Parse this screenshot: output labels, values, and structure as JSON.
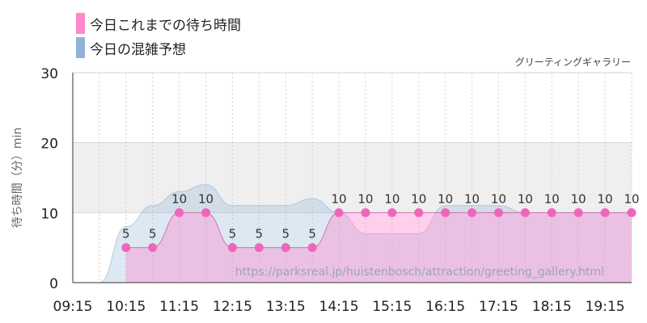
{
  "chart_data": {
    "type": "area",
    "title": "",
    "xlabel": "",
    "ylabel": "待ち時間（分）min",
    "ylim": [
      0,
      30
    ],
    "yticks": [
      0,
      10,
      20,
      30
    ],
    "x_tick_labels": [
      "09:15",
      "10:15",
      "11:15",
      "12:15",
      "13:15",
      "14:15",
      "15:15",
      "16:15",
      "17:15",
      "18:15",
      "19:15"
    ],
    "x": [
      "09:15",
      "09:45",
      "10:15",
      "10:45",
      "11:15",
      "11:45",
      "12:15",
      "12:45",
      "13:15",
      "13:45",
      "14:15",
      "14:45",
      "15:15",
      "15:45",
      "16:15",
      "16:45",
      "17:15",
      "17:45",
      "18:15",
      "18:45",
      "19:15",
      "19:45"
    ],
    "series": [
      {
        "name": "今日これまでの待ち時間",
        "color": "#ff88cc",
        "values": [
          null,
          null,
          5,
          5,
          10,
          10,
          5,
          5,
          5,
          5,
          10,
          10,
          10,
          10,
          10,
          10,
          10,
          10,
          10,
          10,
          10,
          10
        ]
      },
      {
        "name": "今日の混雑予想",
        "color": "#8fb3d4",
        "values": [
          0,
          0,
          8,
          11,
          13,
          14,
          11,
          11,
          11,
          12,
          10,
          7,
          7,
          7,
          11,
          11,
          11,
          10,
          10,
          10,
          10,
          10
        ]
      }
    ],
    "band": [
      10,
      20
    ],
    "grid": true,
    "legend": "top-left"
  },
  "source_label": "グリーティングギャラリー",
  "watermark": "https://parksreal.jp/huistenbosch/attraction/greeting_gallery.html"
}
